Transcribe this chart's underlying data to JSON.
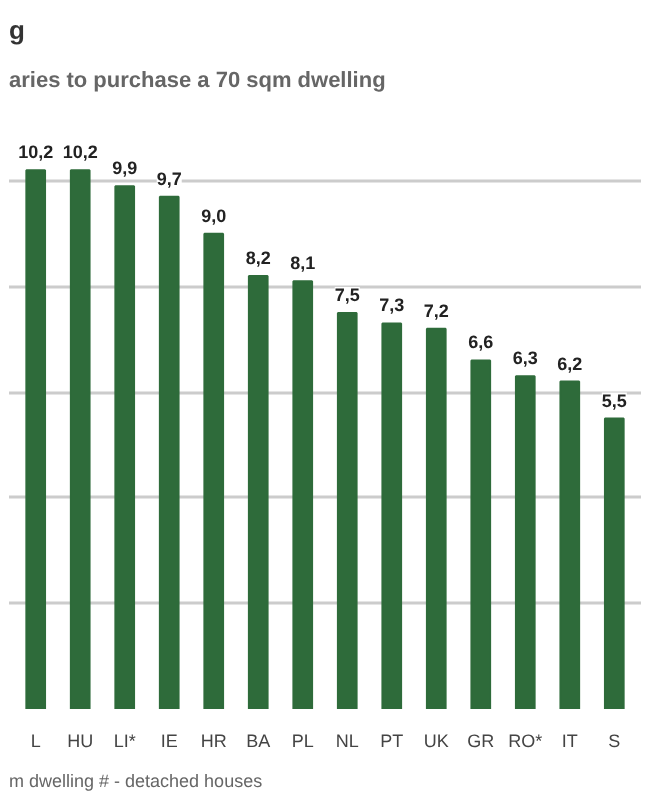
{
  "chart_data": {
    "type": "bar",
    "title": "g",
    "subtitle": "aries to purchase a 70 sqm dwelling",
    "categories": [
      "L",
      "HU",
      "LI*",
      "IE",
      "HR",
      "BA",
      "PL",
      "NL",
      "PT",
      "UK",
      "GR",
      "RO*",
      "IT",
      "S"
    ],
    "values": [
      10.2,
      10.2,
      9.9,
      9.7,
      9.0,
      8.2,
      8.1,
      7.5,
      7.3,
      7.2,
      6.6,
      6.3,
      6.2,
      5.5
    ],
    "value_labels": [
      "10,2",
      "10,2",
      "9,9",
      "9,7",
      "9,0",
      "8,2",
      "8,1",
      "7,5",
      "7,3",
      "7,2",
      "6,6",
      "6,3",
      "6,2",
      "5,5"
    ],
    "color": "#2e6b3a",
    "grid": "y",
    "tick_labels": "x",
    "annotations": [
      "m dwelling    # - detached houses"
    ]
  }
}
